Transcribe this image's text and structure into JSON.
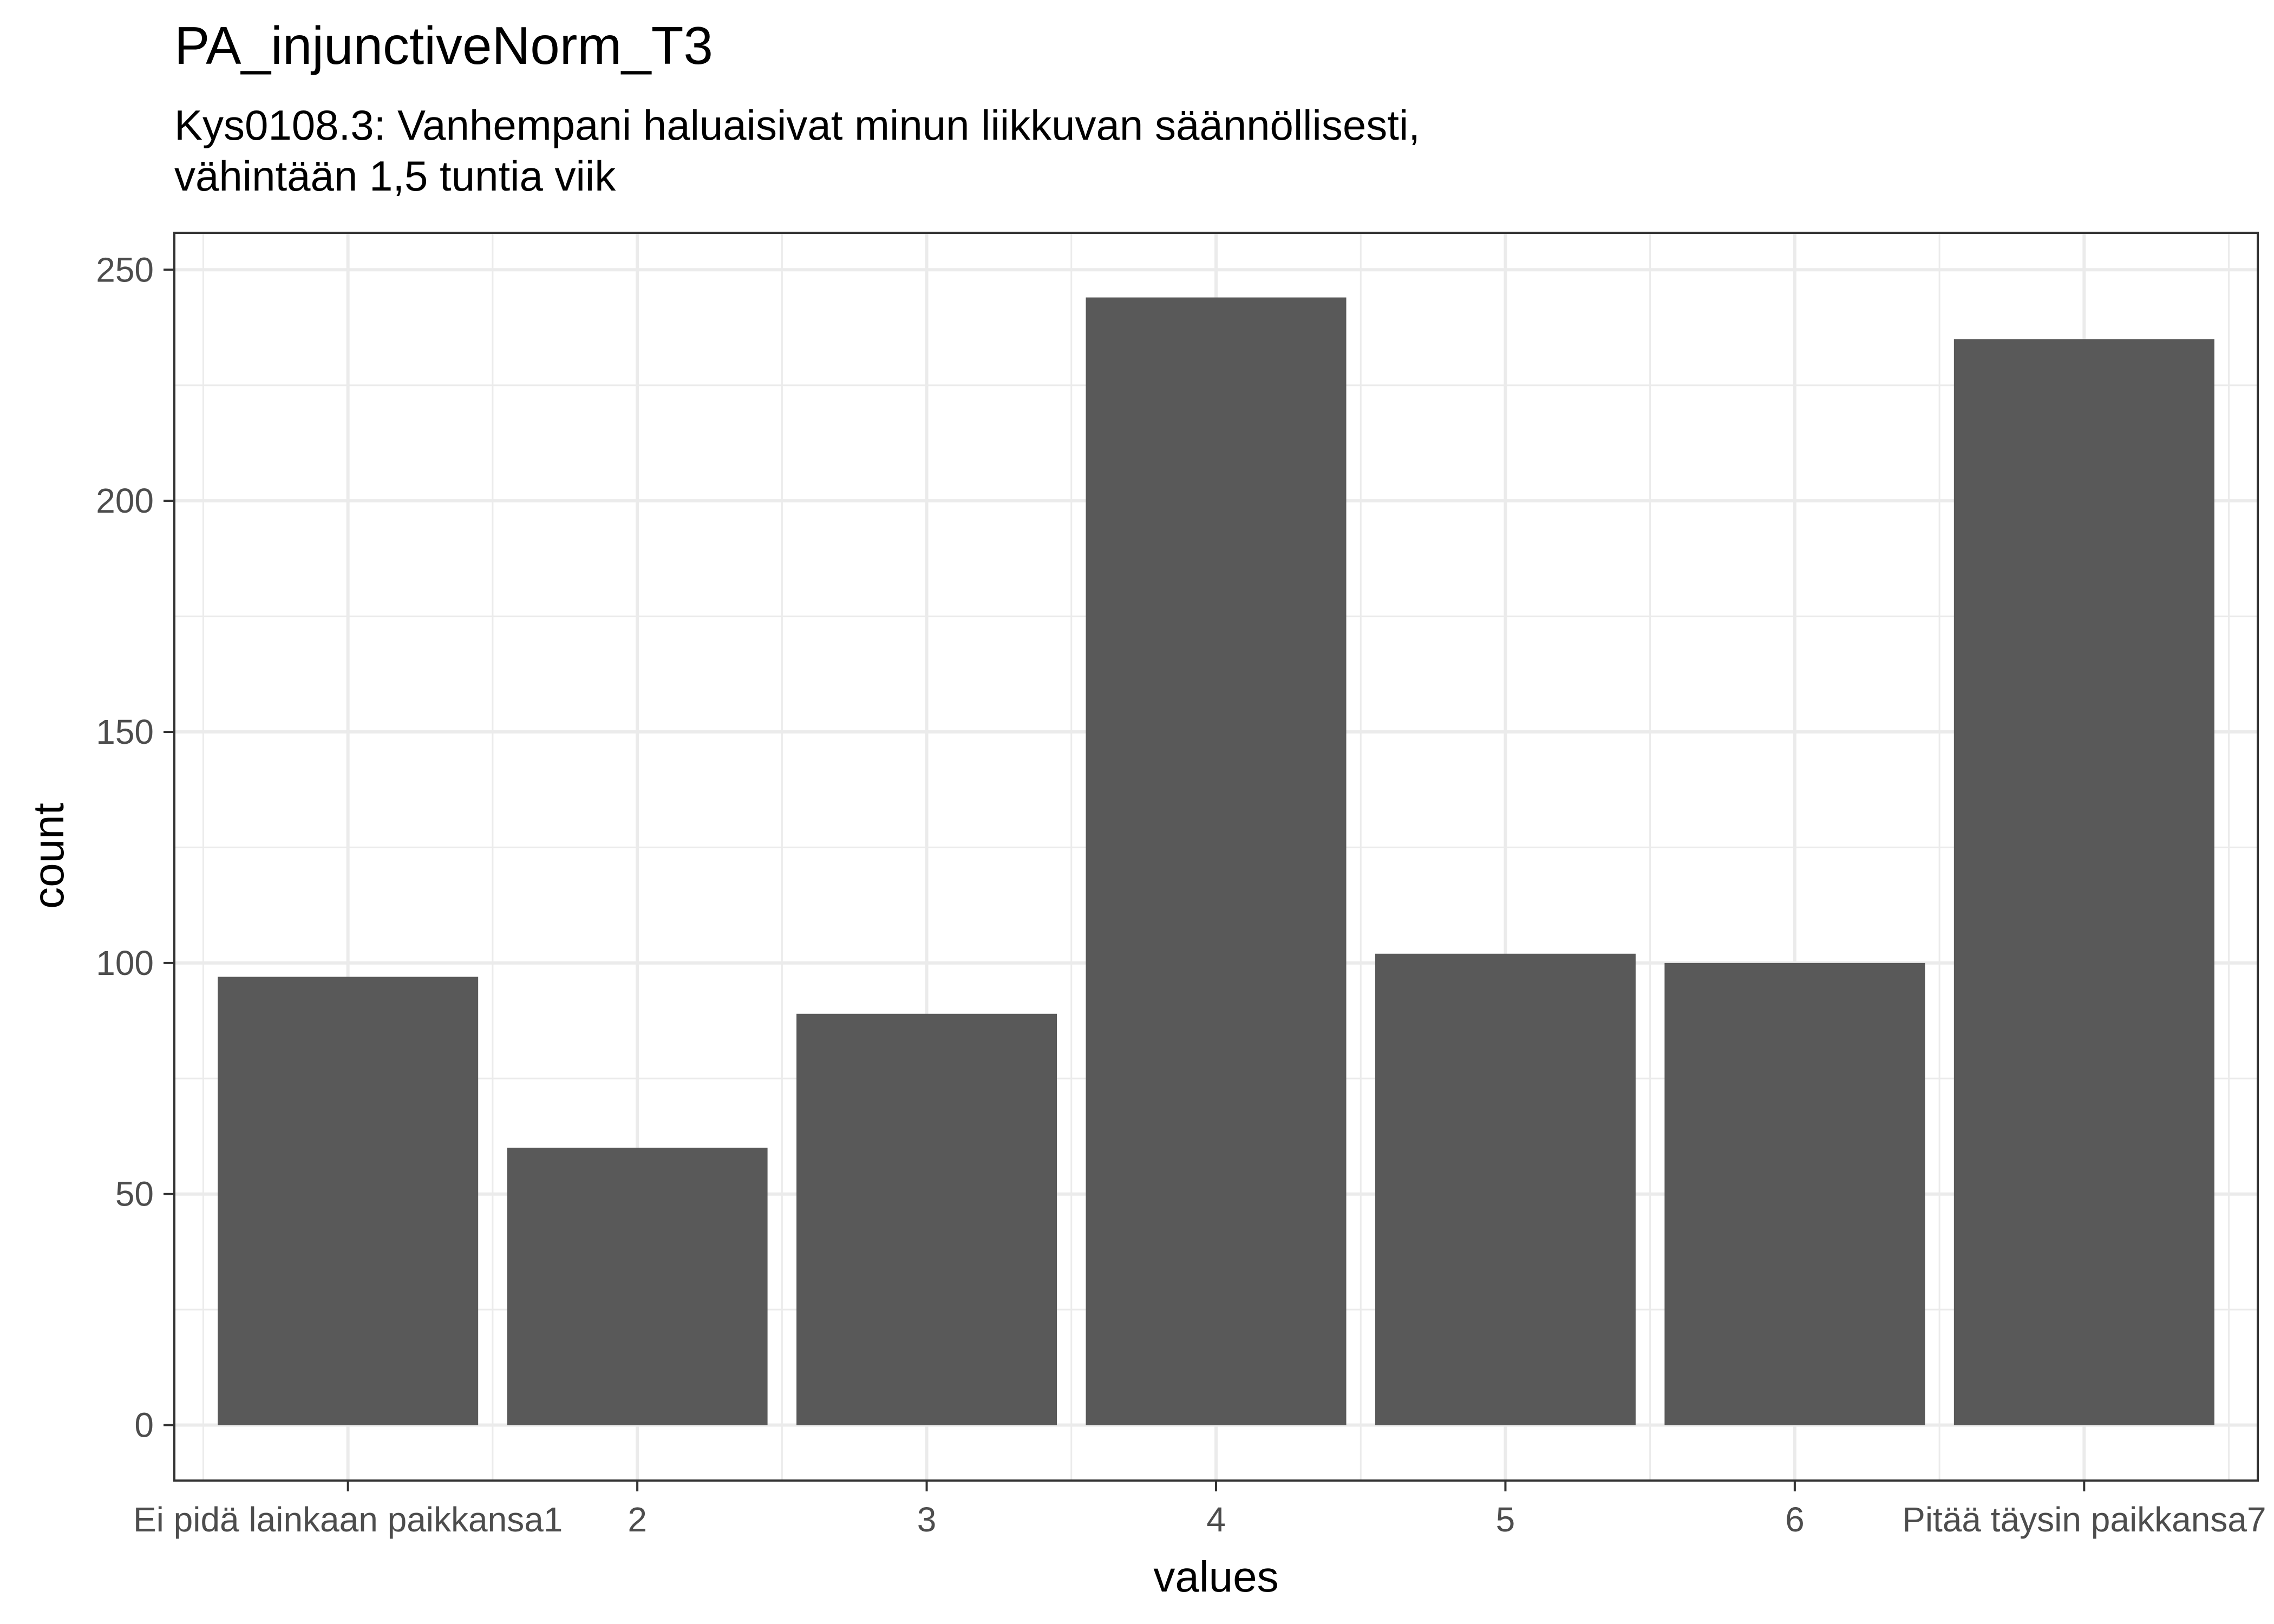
{
  "chart_data": {
    "type": "bar",
    "title": "PA_injunctiveNorm_T3",
    "subtitle_lines": [
      "Kys0108.3: Vanhempani haluaisivat minun liikkuvan säännöllisesti,",
      "vähintään 1,5 tuntia viik"
    ],
    "xlabel": "values",
    "ylabel": "count",
    "categories": [
      "Ei pidä lainkaan paikkansa1",
      "2",
      "3",
      "4",
      "5",
      "6",
      "Pitää täysin paikkansa7"
    ],
    "values": [
      97,
      60,
      89,
      244,
      102,
      100,
      235
    ],
    "ylim": [
      -12,
      258
    ],
    "yticks": [
      0,
      50,
      100,
      150,
      200,
      250
    ],
    "grid": true,
    "legend": "none",
    "bar_color": "#595959",
    "grid_color": "#ebebeb",
    "panel_border_color": "#333333"
  }
}
